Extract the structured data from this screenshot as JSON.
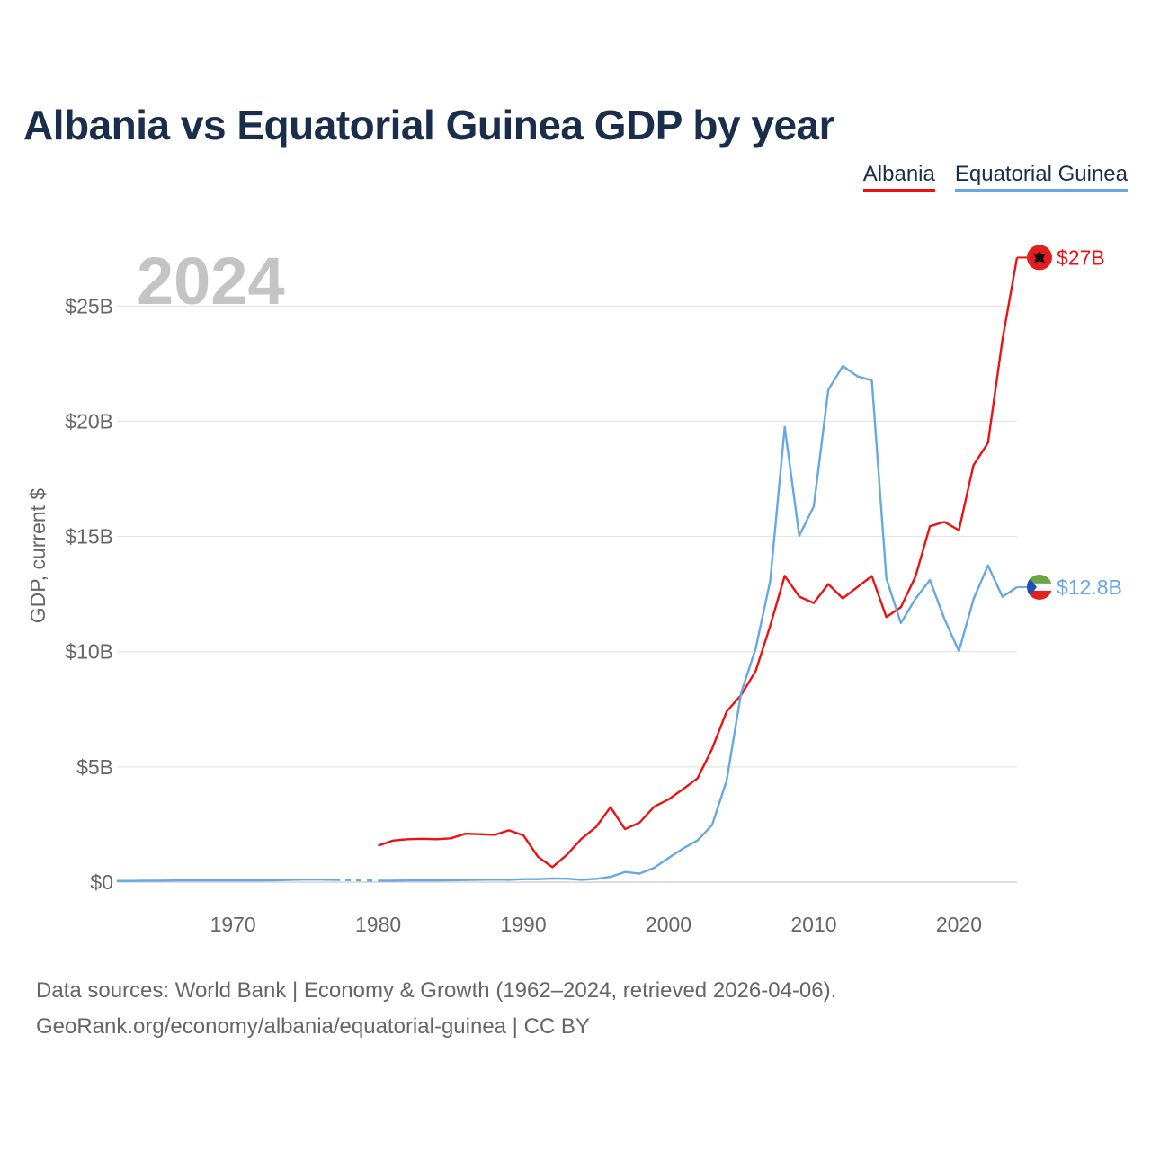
{
  "title": "Albania vs Equatorial Guinea GDP by year",
  "legend": [
    {
      "name": "Albania",
      "color": "#ee1111"
    },
    {
      "name": "Equatorial Guinea",
      "color": "#66a8e4"
    }
  ],
  "year_watermark": "2024",
  "footer": {
    "line1": "Data sources: World Bank | Economy & Growth (1962–2024, retrieved 2026-04-06).",
    "line2": "GeoRank.org/economy/albania/equatorial-guinea | CC BY"
  },
  "chart_data": {
    "type": "line",
    "title": "Albania vs Equatorial Guinea GDP by year",
    "xlabel": "",
    "ylabel": "GDP, current $",
    "xlim": [
      1962,
      2024
    ],
    "ylim": [
      0,
      27
    ],
    "xticks": [
      1970,
      1980,
      1990,
      2000,
      2010,
      2020
    ],
    "xtick_labels": [
      "1970",
      "1980",
      "1990",
      "2000",
      "2010",
      "2020"
    ],
    "yticks": [
      0,
      5,
      10,
      15,
      20,
      25
    ],
    "ytick_labels": [
      "$0",
      "$5B",
      "$10B",
      "$15B",
      "$20B",
      "$25B"
    ],
    "grid": true,
    "legend_position": "top-right",
    "series": [
      {
        "name": "Albania",
        "color": "#ee1111",
        "end_label": "$27B",
        "flag": "albania-flag",
        "x": [
          1980,
          1981,
          1982,
          1983,
          1984,
          1985,
          1986,
          1987,
          1988,
          1989,
          1990,
          1991,
          1992,
          1993,
          1994,
          1995,
          1996,
          1997,
          1998,
          1999,
          2000,
          2001,
          2002,
          2003,
          2004,
          2005,
          2006,
          2007,
          2008,
          2009,
          2010,
          2011,
          2012,
          2013,
          2014,
          2015,
          2016,
          2017,
          2018,
          2019,
          2020,
          2021,
          2022,
          2023,
          2024
        ],
        "values": [
          1.58,
          1.8,
          1.86,
          1.88,
          1.86,
          1.9,
          2.1,
          2.08,
          2.05,
          2.25,
          2.03,
          1.1,
          0.65,
          1.19,
          1.88,
          2.39,
          3.25,
          2.3,
          2.58,
          3.27,
          3.59,
          4.04,
          4.51,
          5.79,
          7.4,
          8.12,
          9.16,
          11.12,
          13.29,
          12.39,
          12.11,
          12.93,
          12.31,
          12.8,
          13.28,
          11.5,
          11.93,
          13.25,
          15.44,
          15.63,
          15.27,
          18.09,
          19.06,
          23.55,
          27.1
        ]
      },
      {
        "name": "Equatorial Guinea",
        "color": "#66a8e4",
        "end_label": "$12.8B",
        "flag": "equatorial-guinea-flag",
        "gap": [
          1977,
          1980
        ],
        "x": [
          1962,
          1963,
          1964,
          1965,
          1966,
          1967,
          1968,
          1969,
          1970,
          1971,
          1972,
          1973,
          1974,
          1975,
          1976,
          1977,
          1980,
          1981,
          1982,
          1983,
          1984,
          1985,
          1986,
          1987,
          1988,
          1989,
          1990,
          1991,
          1992,
          1993,
          1994,
          1995,
          1996,
          1997,
          1998,
          1999,
          2000,
          2001,
          2002,
          2003,
          2004,
          2005,
          2006,
          2007,
          2008,
          2009,
          2010,
          2011,
          2012,
          2013,
          2014,
          2015,
          2016,
          2017,
          2018,
          2019,
          2020,
          2021,
          2022,
          2023,
          2024
        ],
        "values": [
          0.05,
          0.05,
          0.06,
          0.06,
          0.07,
          0.07,
          0.07,
          0.07,
          0.07,
          0.07,
          0.07,
          0.08,
          0.1,
          0.11,
          0.11,
          0.1,
          0.06,
          0.06,
          0.07,
          0.07,
          0.07,
          0.08,
          0.09,
          0.1,
          0.11,
          0.1,
          0.13,
          0.13,
          0.16,
          0.15,
          0.1,
          0.14,
          0.23,
          0.44,
          0.37,
          0.62,
          1.05,
          1.46,
          1.81,
          2.48,
          4.41,
          8.22,
          10.14,
          13.07,
          19.75,
          15.03,
          16.3,
          21.36,
          22.39,
          21.95,
          21.77,
          13.18,
          11.24,
          12.29,
          13.11,
          11.42,
          10.02,
          12.27,
          13.74,
          12.38,
          12.8
        ]
      }
    ]
  }
}
